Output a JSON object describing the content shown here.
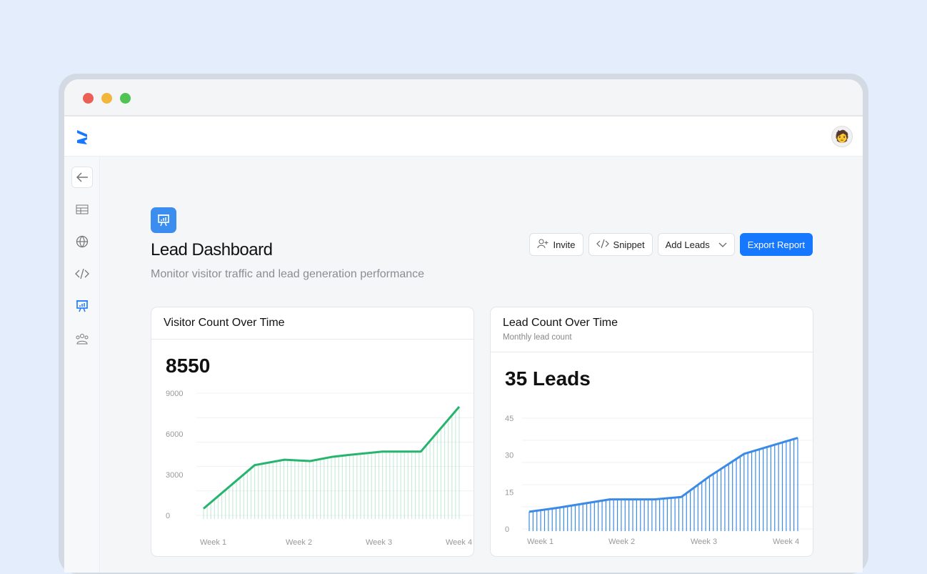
{
  "window": {
    "controls": {
      "close": "#ec5f57",
      "minimize": "#f2b63c",
      "maximize": "#4fc453"
    }
  },
  "header": {
    "logo": "brand-logo",
    "avatar": "user-avatar"
  },
  "sidebar": {
    "items": [
      {
        "icon": "arrow-left-icon"
      },
      {
        "icon": "table-icon"
      },
      {
        "icon": "globe-icon"
      },
      {
        "icon": "code-icon"
      },
      {
        "icon": "presentation-chart-icon",
        "active": true
      },
      {
        "icon": "users-icon"
      }
    ]
  },
  "page": {
    "title": "Lead Dashboard",
    "subtitle": "Monitor visitor traffic and lead generation performance"
  },
  "actions": {
    "invite": "Invite",
    "snippet": "Snippet",
    "add_leads": "Add Leads",
    "export": "Export Report"
  },
  "colors": {
    "accent": "#1677ff",
    "visitor_line": "#27b46e",
    "lead_line": "#3b8ae6"
  },
  "visitor_card": {
    "title": "Visitor Count Over Time",
    "value": "8550"
  },
  "lead_card": {
    "title": "Lead Count Over Time",
    "subtitle": "Monthly lead count",
    "value": "35 Leads"
  },
  "chart_data": [
    {
      "type": "area",
      "ylim": [
        0,
        9000
      ],
      "yticks": [
        "0",
        "3000",
        "6000",
        "9000"
      ],
      "xticks": [
        "Week 1",
        "Week 2",
        "Week 3",
        "Week 4"
      ],
      "grid": true,
      "x": [
        1,
        1.6,
        1.95,
        2.25,
        2.5,
        2.7,
        3.1,
        3.55,
        4
      ],
      "values": [
        500,
        3700,
        4100,
        4000,
        4300,
        4450,
        4700,
        4700,
        8000
      ]
    },
    {
      "type": "area",
      "ylim": [
        0,
        45
      ],
      "yticks": [
        "0",
        "15",
        "30",
        "45"
      ],
      "xticks": [
        "Week 1",
        "Week 2",
        "Week 3",
        "Week 4"
      ],
      "grid": true,
      "x": [
        1,
        1.3,
        1.9,
        2.4,
        2.7,
        3,
        3.4,
        4
      ],
      "values": [
        7,
        8.5,
        12,
        12,
        13,
        21,
        30.5,
        37
      ]
    }
  ]
}
